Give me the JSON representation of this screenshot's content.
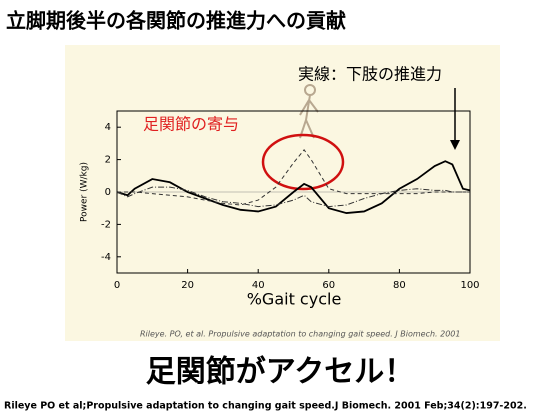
{
  "title": "立脚期後半の各関節の推進力への貢献",
  "chart_data": {
    "type": "line",
    "xlabel": "%Gait cycle",
    "ylabel": "Power (W/kg)",
    "annotations": [
      "実線：下肢の推進力",
      "足関節の寄与"
    ],
    "source": "Rileye. PO, et al. Propulsive adaptation to changing gait speed. J Biomech. 2001",
    "x": [
      0,
      3,
      5,
      10,
      15,
      20,
      25,
      30,
      35,
      40,
      45,
      50,
      53,
      55,
      60,
      65,
      70,
      75,
      80,
      85,
      90,
      93,
      95,
      98,
      100
    ],
    "series": [
      {
        "color": "#000000",
        "dash": "none",
        "values": [
          0,
          -0.2,
          0.2,
          0.8,
          0.6,
          0,
          -0.4,
          -0.8,
          -1.1,
          -1.2,
          -0.9,
          0,
          0.5,
          0.3,
          -1.0,
          -1.3,
          -1.2,
          -0.7,
          0.2,
          0.8,
          1.6,
          1.9,
          1.7,
          0.2,
          0.1
        ]
      },
      {
        "color": "#333333",
        "dash": "4 3",
        "values": [
          0,
          0,
          0,
          -0.1,
          -0.2,
          -0.3,
          -0.5,
          -0.7,
          -0.8,
          -0.5,
          0.3,
          1.8,
          2.6,
          2.0,
          0.2,
          -0.1,
          -0.1,
          -0.1,
          -0.1,
          -0.1,
          0,
          0,
          0,
          0,
          0
        ]
      },
      {
        "color": "#333333",
        "dash": "6 2 1 2",
        "values": [
          0,
          -0.3,
          -0.1,
          0.3,
          0.3,
          0.1,
          -0.3,
          -0.6,
          -0.7,
          -0.9,
          -0.8,
          -0.5,
          -0.2,
          -0.6,
          -0.9,
          -0.8,
          -0.4,
          -0.1,
          0.1,
          0.2,
          0.1,
          0.1,
          0,
          0,
          0
        ]
      }
    ],
    "xlim": [
      0,
      100
    ],
    "xticks": [
      0,
      20,
      40,
      60,
      80,
      100
    ],
    "ylim": [
      -5,
      5
    ],
    "yticks": [
      4,
      2,
      0,
      -2,
      -4
    ]
  },
  "headline": "足関節がアクセル！",
  "footer": "Rileye PO et al;Propulsive adaptation to changing gait speed.J Biomech. 2001 Feb;34(2):197-202."
}
